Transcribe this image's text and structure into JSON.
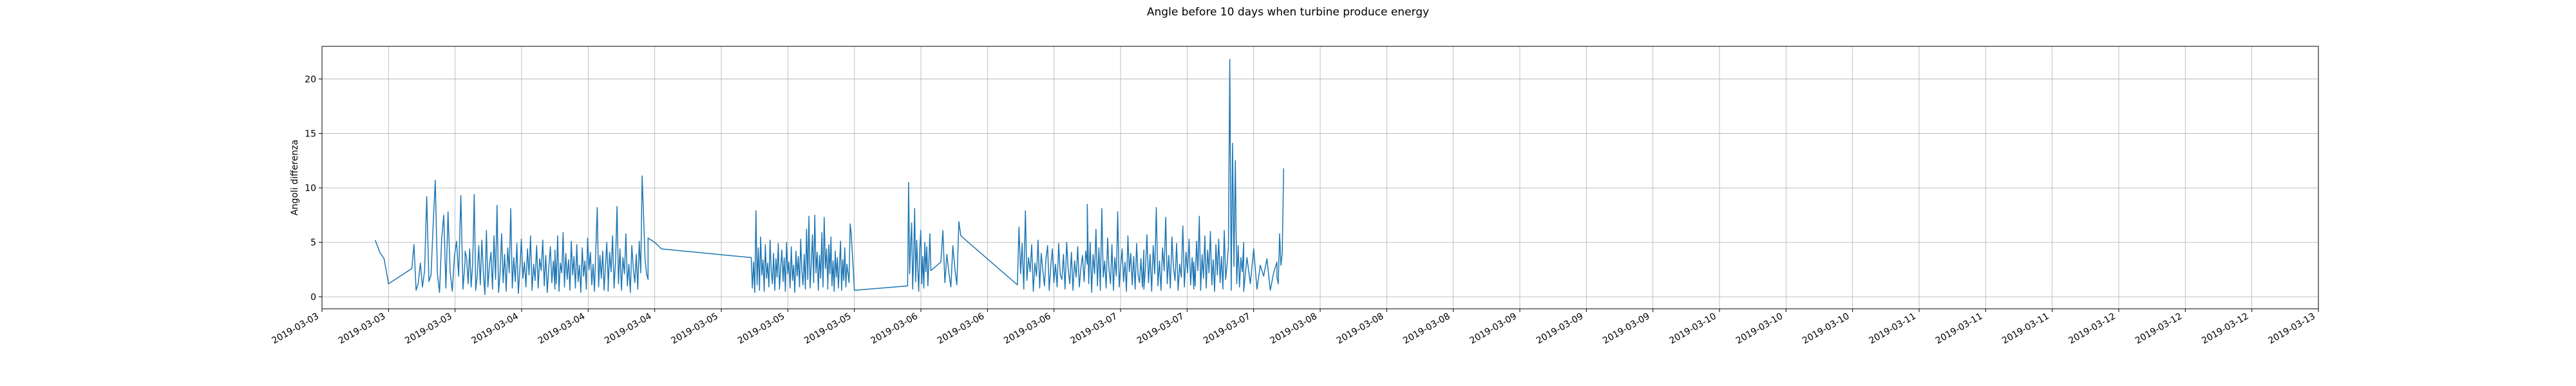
{
  "chart_data": {
    "type": "line",
    "title": "Angle before 10 days when turbine produce energy",
    "xlabel": "",
    "ylabel": "Angoli differenza",
    "grid": true,
    "line_color": "#1f77b4",
    "ylim": [
      -1.1,
      23.0
    ],
    "yticks": [
      0,
      5,
      10,
      15,
      20
    ],
    "xticks": [
      "2019-03-03",
      "2019-03-03",
      "2019-03-03",
      "2019-03-04",
      "2019-03-04",
      "2019-03-04",
      "2019-03-05",
      "2019-03-05",
      "2019-03-05",
      "2019-03-06",
      "2019-03-06",
      "2019-03-06",
      "2019-03-07",
      "2019-03-07",
      "2019-03-07",
      "2019-03-08",
      "2019-03-08",
      "2019-03-08",
      "2019-03-09",
      "2019-03-09",
      "2019-03-09",
      "2019-03-10",
      "2019-03-10",
      "2019-03-10",
      "2019-03-11",
      "2019-03-11",
      "2019-03-11",
      "2019-03-12",
      "2019-03-12",
      "2019-03-12",
      "2019-03-13"
    ],
    "xlim_ticks": [
      0,
      30
    ],
    "segments": [
      {
        "from": 0.8,
        "to": 1.0,
        "values": [
          5.2,
          4.1,
          3.5,
          1.2
        ]
      },
      {
        "from": 1.35,
        "to": 2.15,
        "values": [
          2.6,
          4.8,
          0.6,
          1.2,
          3.1,
          0.9,
          2.4,
          9.2,
          1.4,
          2.0,
          6.6,
          10.7,
          2.1,
          0.4,
          5.3,
          7.5,
          0.8,
          7.8,
          2.3,
          0.5,
          3.7,
          5.1,
          1.9,
          9.3,
          0.7,
          3.3
        ]
      },
      {
        "from": 2.15,
        "to": 3.5,
        "values": [
          4.2,
          3.6,
          1.2,
          4.4,
          0.9,
          3.1,
          9.4,
          0.6,
          2.0,
          4.7,
          1.1,
          5.2,
          2.3,
          0.2,
          6.1,
          0.9,
          2.9,
          4.1,
          0.7,
          5.6,
          1.6,
          8.4,
          0.4,
          2.1,
          5.8,
          1.3,
          3.9,
          0.5,
          4.5,
          2.2,
          8.1,
          0.8,
          3.6,
          1.4,
          4.9,
          0.3,
          2.6,
          5.3,
          1.7,
          3.2,
          0.9,
          4.4,
          2.0,
          5.6,
          0.6,
          3.0,
          1.5,
          4.7,
          0.8,
          3.5,
          2.4,
          5.2,
          1.0,
          3.8,
          0.4,
          2.7,
          4.6,
          1.3,
          3.3,
          0.7
        ]
      },
      {
        "from": 3.5,
        "to": 4.3,
        "values": [
          4.3,
          1.2,
          5.6,
          0.5,
          3.1,
          2.2,
          5.9,
          0.9,
          4.0,
          1.6,
          3.4,
          0.6,
          5.1,
          2.0,
          3.7,
          0.8,
          4.8,
          1.4,
          2.9,
          0.4,
          4.5,
          1.9,
          3.3,
          0.7,
          5.4,
          2.5,
          4.1,
          1.1,
          3.0,
          0.5,
          4.6,
          8.2,
          0.9,
          3.8,
          1.7,
          4.2,
          0.6,
          2.8,
          5.0,
          1.5
        ]
      },
      {
        "from": 4.3,
        "to": 4.9,
        "values": [
          0.5,
          4.1,
          2.3,
          5.6,
          0.8,
          3.2,
          8.3,
          1.2,
          4.4,
          0.6,
          3.6,
          2.1,
          5.8,
          1.0,
          3.0,
          0.4,
          4.7,
          2.6,
          1.3,
          3.9,
          0.7,
          5.1,
          2.2,
          11.1,
          7.3,
          3.4,
          2.1,
          1.6
        ]
      },
      {
        "from": 4.9,
        "to": 5.1,
        "values": [
          5.4,
          5.0,
          4.4
        ]
      },
      {
        "from": 6.45,
        "to": 7.6,
        "values": [
          3.6,
          0.8,
          3.2,
          0.4,
          7.9,
          1.1,
          4.5,
          0.6,
          5.5,
          2.0,
          3.4,
          0.5,
          4.8,
          1.7,
          3.1,
          0.9,
          5.2,
          2.3,
          1.2,
          4.0,
          0.6,
          3.5,
          1.8,
          4.9,
          0.7,
          2.7,
          4.3,
          1.4,
          3.6,
          0.5,
          5.0,
          2.1,
          3.2,
          0.8,
          4.6,
          1.5,
          2.9,
          0.4,
          4.2,
          1.9,
          3.7,
          0.9,
          5.3,
          2.4,
          1.1,
          3.9,
          0.7,
          6.2,
          1.6,
          7.4,
          0.8,
          3.0,
          5.7,
          1.3,
          7.5,
          2.2,
          4.1,
          0.6,
          3.8,
          1.7,
          5.9,
          0.9,
          7.3,
          2.6,
          4.4,
          1.2
        ]
      },
      {
        "from": 7.6,
        "to": 8.0,
        "values": [
          0.7,
          4.8,
          2.1,
          5.5,
          1.0,
          3.3,
          0.5,
          4.2,
          1.8,
          3.6,
          0.8,
          2.9,
          5.1,
          0.6,
          3.4,
          1.5,
          4.5,
          0.9,
          3.0,
          2.2,
          1.3,
          6.7,
          5.8,
          4.1,
          2.5,
          0.6
        ]
      },
      {
        "from": 8.8,
        "to": 9.15,
        "values": [
          1.0,
          10.5,
          2.1,
          4.8,
          6.8,
          0.7,
          3.9,
          8.1,
          1.4,
          5.2,
          2.6,
          0.5,
          4.4,
          6.1,
          1.2,
          3.7,
          0.8,
          5.0,
          2.3,
          4.6,
          1.0,
          3.2,
          5.8,
          2.4
        ]
      },
      {
        "from": 9.3,
        "to": 9.6,
        "values": [
          3.2,
          6.1,
          1.3,
          3.9,
          2.2,
          0.9,
          4.7,
          2.6,
          1.1,
          6.9,
          5.6
        ]
      },
      {
        "from": 10.45,
        "to": 11.5,
        "values": [
          1.1,
          6.4,
          2.1,
          4.9,
          0.7,
          7.9,
          1.5,
          3.6,
          2.3,
          4.8,
          0.5,
          3.1,
          1.9,
          5.2,
          0.8,
          4.0,
          2.4,
          1.0,
          3.5,
          4.7,
          0.6,
          2.8,
          4.4,
          1.3,
          3.0,
          0.9,
          4.9,
          2.0,
          1.6,
          3.9,
          0.7,
          5.0,
          2.5,
          1.2,
          4.1,
          0.6,
          3.3,
          1.8,
          4.6,
          0.9,
          2.7,
          3.8,
          1.4,
          4.2,
          3.0
        ]
      },
      {
        "from": 11.5,
        "to": 12.35,
        "values": [
          8.5,
          1.2,
          5.0,
          0.4,
          3.9,
          2.1,
          6.2,
          1.0,
          4.5,
          0.6,
          8.1,
          1.8,
          3.3,
          0.8,
          5.4,
          2.5,
          1.2,
          4.8,
          0.6,
          3.6,
          1.9,
          7.8,
          0.9,
          2.8,
          4.4,
          1.4,
          3.2,
          0.5,
          5.6,
          2.3,
          4.0,
          1.1,
          3.7,
          0.7,
          4.9,
          2.0,
          1.3,
          3.5,
          0.9,
          4.3
        ]
      },
      {
        "from": 12.35,
        "to": 13.1,
        "values": [
          0.7,
          2.5,
          5.7,
          1.3,
          3.9,
          0.5,
          4.7,
          2.1,
          8.2,
          1.0,
          3.3,
          0.6,
          4.5,
          2.4,
          7.3,
          1.2,
          3.8,
          0.8,
          5.5,
          2.6,
          1.5,
          4.9,
          0.6,
          3.0,
          1.8,
          6.5,
          0.9,
          4.1,
          2.2,
          5.3,
          1.1,
          3.6,
          0.7
        ]
      },
      {
        "from": 13.1,
        "to": 13.85,
        "values": [
          3.2,
          1.0,
          5.1,
          2.4,
          7.4,
          0.6,
          3.9,
          1.7,
          5.6,
          0.8,
          4.3,
          2.2,
          6.0,
          1.1,
          3.4,
          0.5,
          4.8,
          2.0,
          5.3,
          1.3,
          3.7,
          0.7,
          6.1,
          1.6,
          2.9,
          4.6,
          21.8,
          0.6,
          14.1,
          2.8,
          12.5,
          1.2,
          4.7,
          0.9,
          3.6,
          2.3,
          5.0
        ]
      },
      {
        "from": 13.85,
        "to": 14.35,
        "values": [
          0.5,
          3.6,
          1.2,
          4.4,
          0.7,
          2.9,
          1.9,
          3.5,
          0.6,
          2.2,
          3.2
        ]
      },
      {
        "from": 14.35,
        "to": 14.45,
        "values": [
          1.8,
          1.2,
          5.8,
          2.9,
          4.0,
          11.8
        ]
      }
    ]
  }
}
